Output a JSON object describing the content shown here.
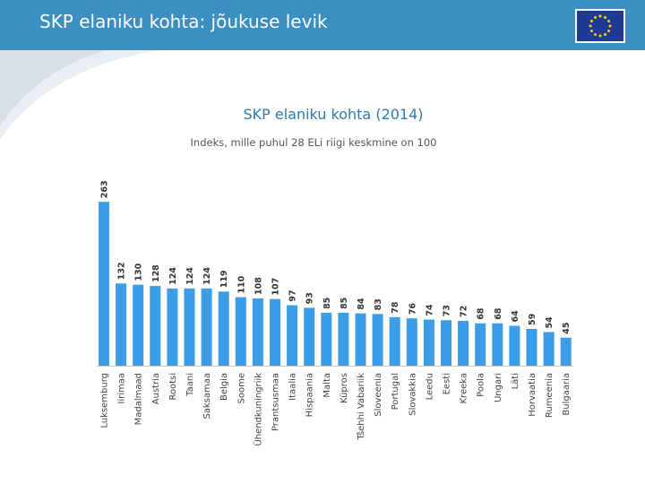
{
  "header": {
    "title": "SKP elaniku kohta: jõukuse levik",
    "flag_icon": "eu-flag-icon",
    "background_color": "#3b8fc2"
  },
  "chart_data": {
    "type": "bar",
    "title": "SKP elaniku kohta (2014)",
    "subtitle": "Indeks, mille puhul 28 ELi riigi keskmine on 100",
    "xlabel": "",
    "ylabel": "",
    "bar_color": "#3b9ce8",
    "grid": false,
    "categories": [
      "Luksemburg",
      "Iirimaa",
      "Madalmaad",
      "Austria",
      "Rootsi",
      "Taani",
      "Saksamaa",
      "Belgia",
      "Soome",
      "Ühendkuningriik",
      "Prantsusmaa",
      "Itaalia",
      "Hispaania",
      "Malta",
      "Küpros",
      "Tšehhi Vabariik",
      "Sloveenia",
      "Portugal",
      "Slovakkia",
      "Leedu",
      "Eesti",
      "Kreeka",
      "Poola",
      "Ungari",
      "Läti",
      "Horvaatia",
      "Rumeenia",
      "Bulgaaria"
    ],
    "values": [
      263,
      132,
      130,
      128,
      124,
      124,
      124,
      119,
      110,
      108,
      107,
      97,
      93,
      85,
      85,
      84,
      83,
      78,
      76,
      74,
      73,
      72,
      68,
      68,
      64,
      59,
      54,
      45
    ]
  }
}
